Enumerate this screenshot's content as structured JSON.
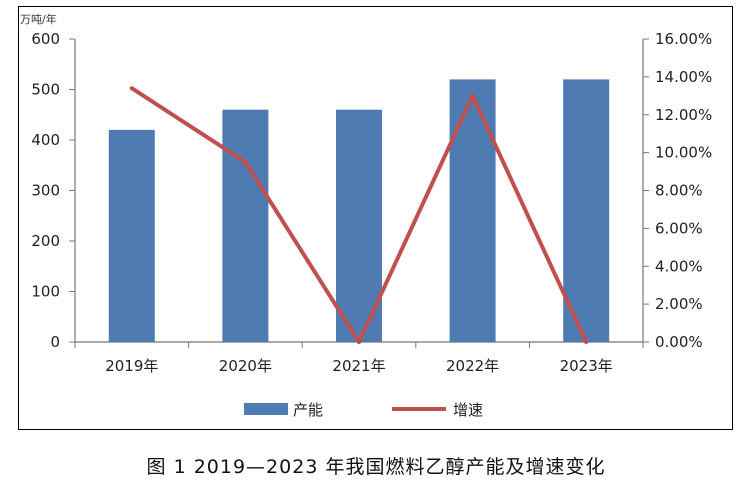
{
  "chart_data": {
    "type": "bar",
    "categories": [
      "2019年",
      "2020年",
      "2021年",
      "2022年",
      "2023年"
    ],
    "series": [
      {
        "name": "产能",
        "type": "bar",
        "axis": "left",
        "color": "#4f7bb3",
        "values": [
          420,
          460,
          460,
          520,
          520
        ]
      },
      {
        "name": "增速",
        "type": "line",
        "axis": "right",
        "color": "#c0504d",
        "values": [
          13.4,
          9.5,
          0.0,
          13.0,
          0.0
        ]
      }
    ],
    "left_axis": {
      "unit_label": "万吨/年",
      "ylim": [
        0,
        600
      ],
      "ticks": [
        0,
        100,
        200,
        300,
        400,
        500,
        600
      ]
    },
    "right_axis": {
      "ylim": [
        0,
        16
      ],
      "ticks": [
        "0.00%",
        "2.00%",
        "4.00%",
        "6.00%",
        "8.00%",
        "10.00%",
        "12.00%",
        "14.00%",
        "16.00%"
      ]
    },
    "legend": {
      "placement": "bottom"
    },
    "grid": false
  },
  "caption": "图 1  2019—2023 年我国燃料乙醇产能及增速变化"
}
